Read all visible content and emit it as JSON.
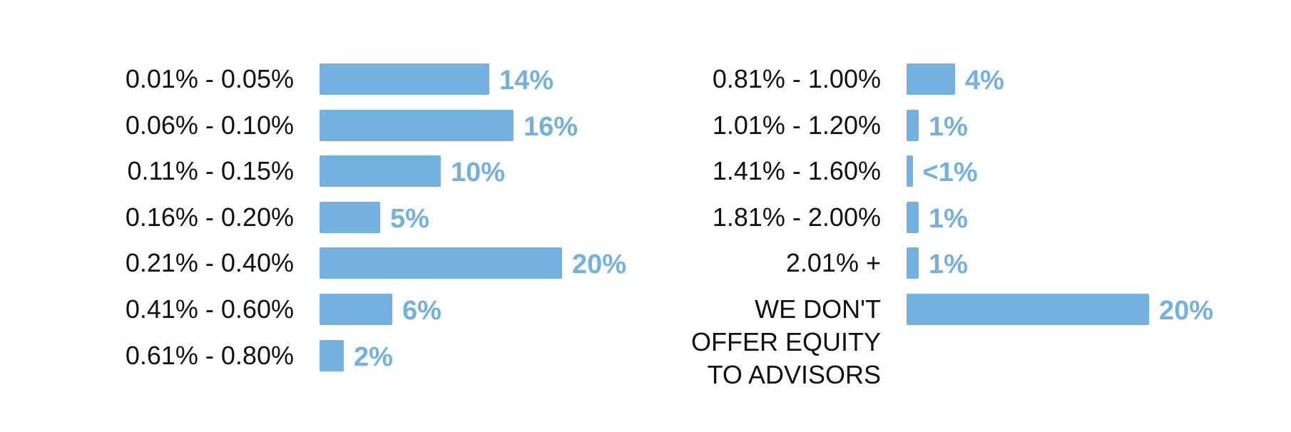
{
  "chart_data": [
    {
      "type": "bar",
      "orientation": "horizontal",
      "color": "#74b1de",
      "categories": [
        "0.01% - 0.05%",
        "0.06% - 0.10%",
        "0.11% - 0.15%",
        "0.16% - 0.20%",
        "0.21% - 0.40%",
        "0.41% - 0.60%",
        "0.61% - 0.80%"
      ],
      "values": [
        14,
        16,
        10,
        5,
        20,
        6,
        2
      ],
      "value_labels": [
        "14%",
        "16%",
        "10%",
        "5%",
        "20%",
        "6%",
        "2%"
      ]
    },
    {
      "type": "bar",
      "orientation": "horizontal",
      "color": "#74b1de",
      "categories": [
        "0.81% - 1.00%",
        "1.01% - 1.20%",
        "1.41% - 1.60%",
        "1.81% - 2.00%",
        "2.01% +",
        "WE DON'T OFFER EQUITY TO ADVISORS"
      ],
      "values": [
        4,
        1,
        0.5,
        1,
        1,
        20
      ],
      "value_labels": [
        "4%",
        "1%",
        "<1%",
        "1%",
        "1%",
        "20%"
      ]
    }
  ]
}
